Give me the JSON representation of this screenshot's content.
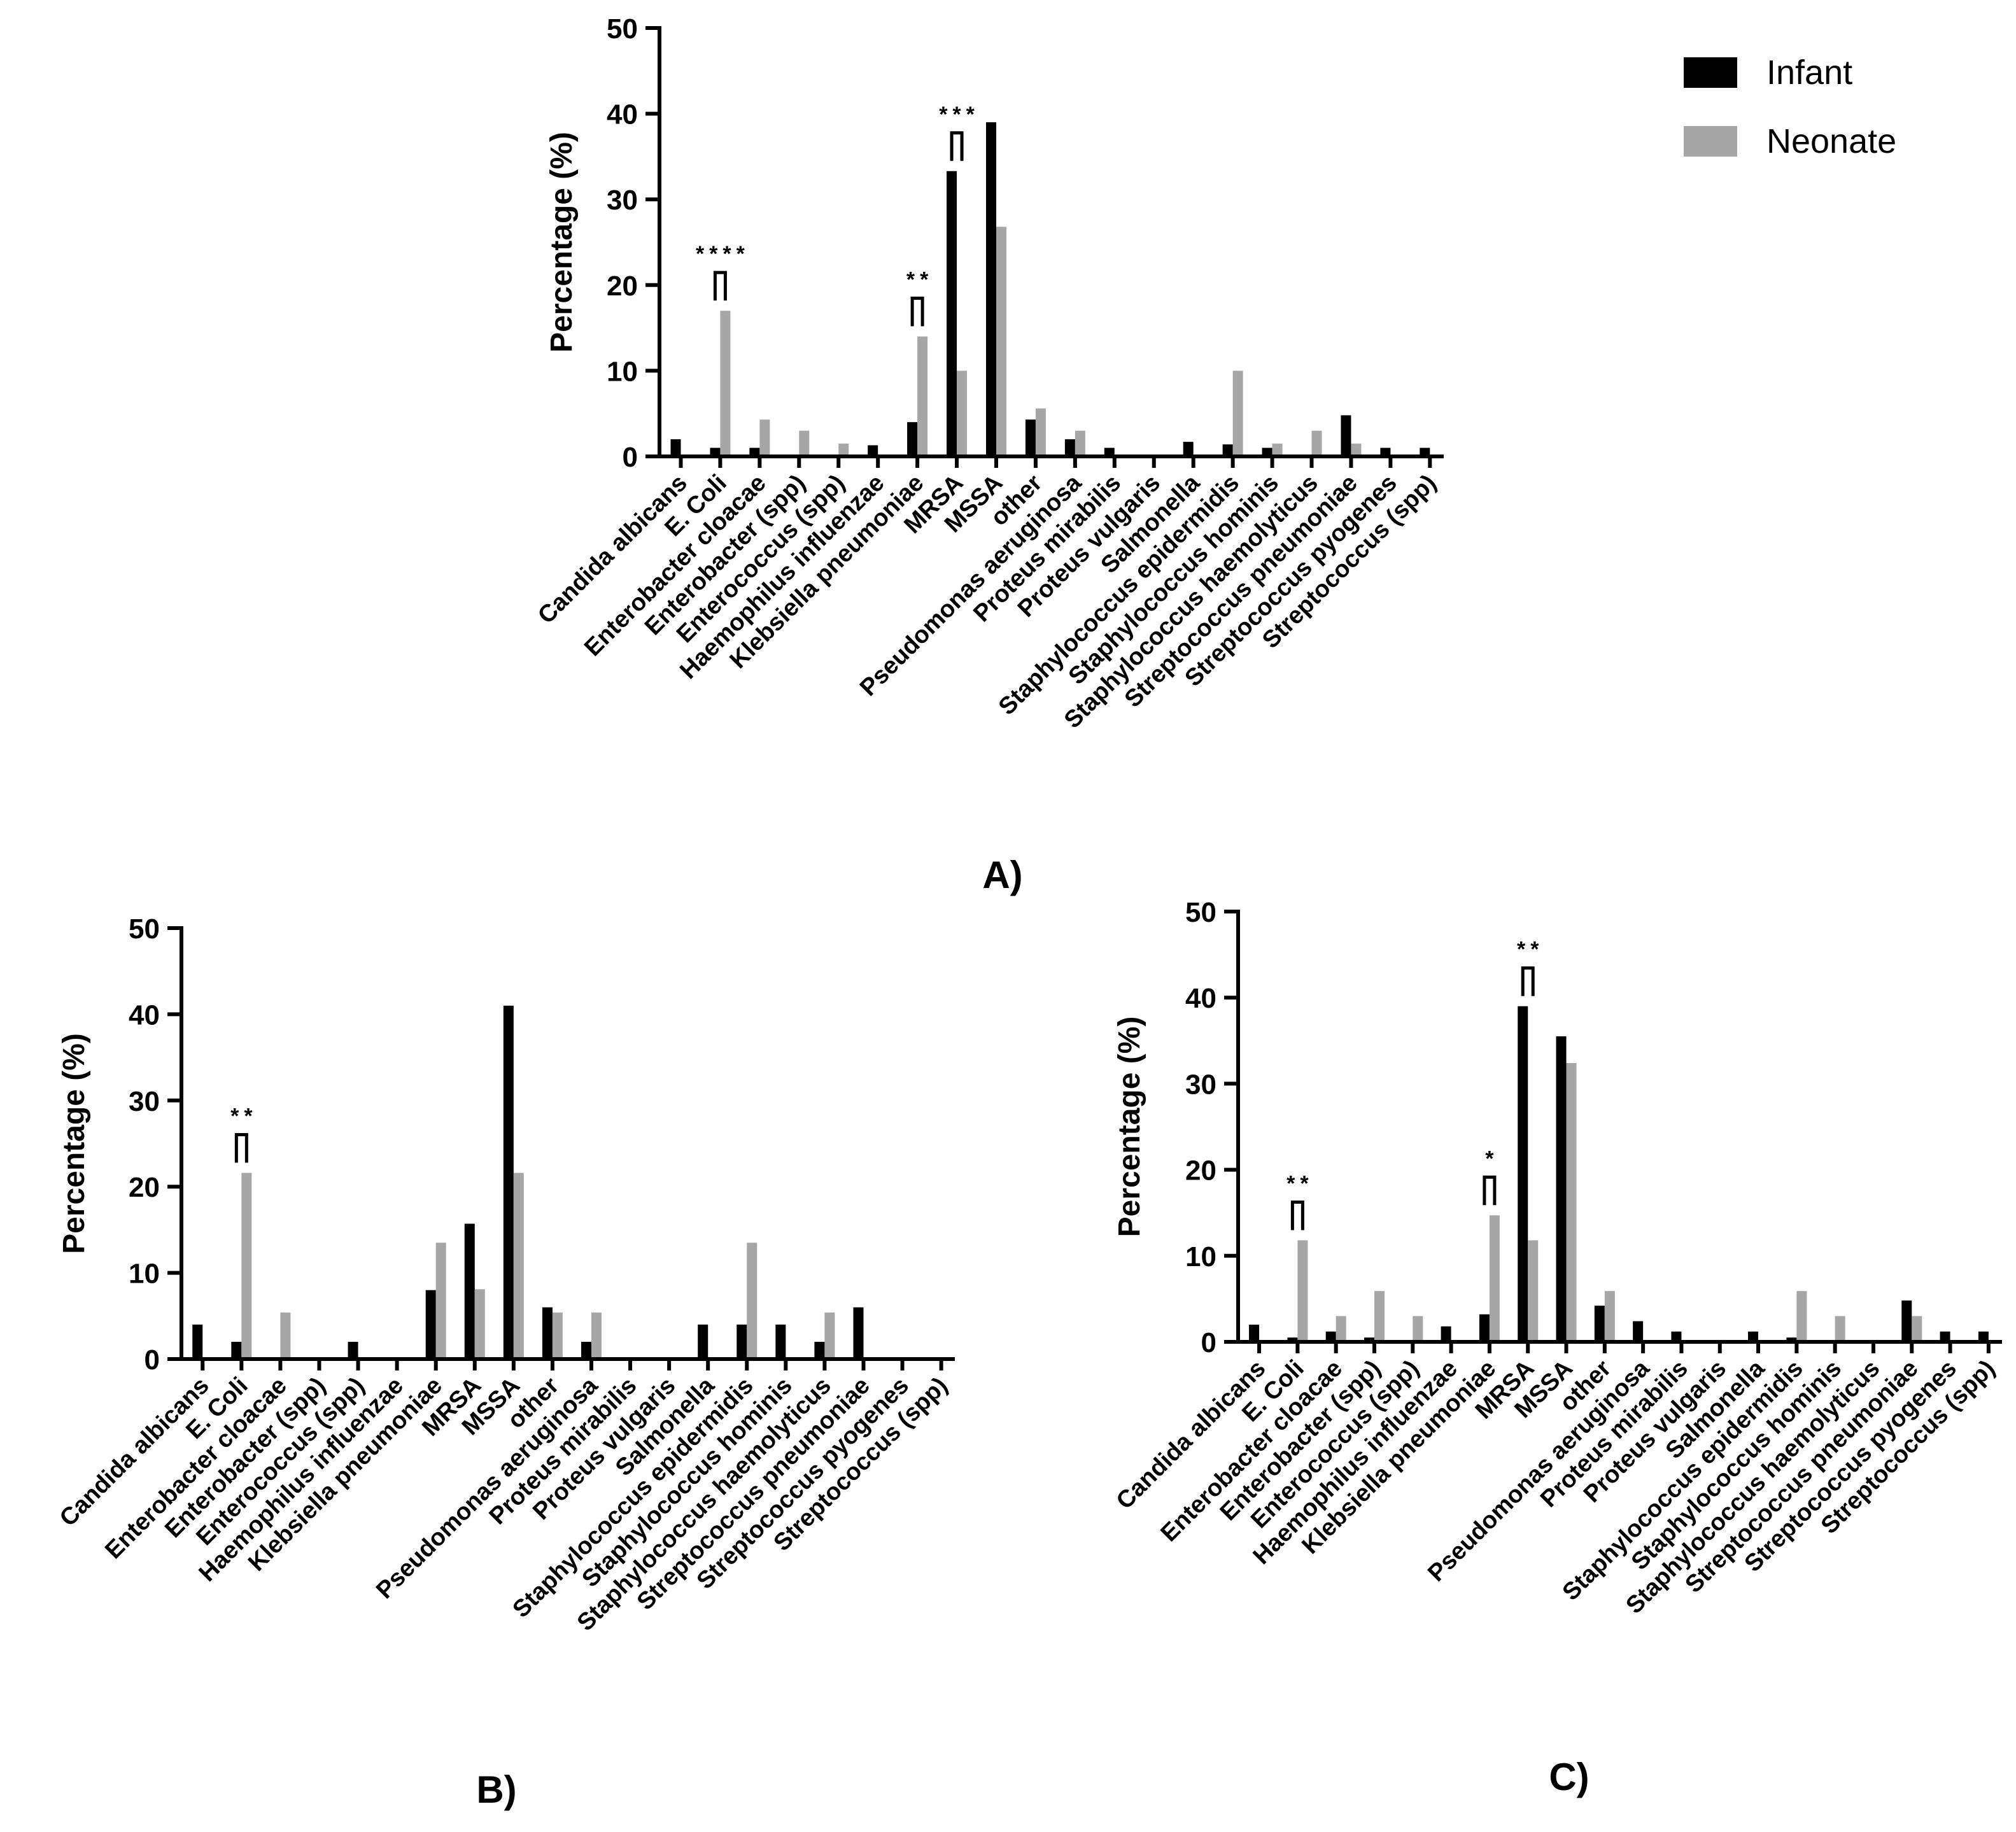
{
  "legend": {
    "position": "top-right",
    "entries": [
      {
        "label": "Infant",
        "color": "#000000"
      },
      {
        "label": "Neonate",
        "color": "#a6a6a6"
      }
    ]
  },
  "colors": {
    "infant": "#000000",
    "neonate": "#a6a6a6"
  },
  "chart_data": [
    {
      "type": "bar",
      "panel_label": "A)",
      "ylabel": "Percentage (%)",
      "ylim": [
        0,
        50
      ],
      "yticks": [
        0,
        10,
        20,
        30,
        40,
        50
      ],
      "categories": [
        "Candida albicans",
        "E. Coli",
        "Enterobacter cloacae",
        "Enterobacter (spp)",
        "Enterococcus (spp)",
        "Haemophilus influenzae",
        "Klebsiella pneumoniae",
        "MRSA",
        "MSSA",
        "other",
        "Pseudomonas aeruginosa",
        "Proteus mirabilis",
        "Proteus vulgaris",
        "Salmonella",
        "Staphylococcus epidermidis",
        "Staphylococcus hominis",
        "Staphylococcus haemolyticus",
        "Streptococcus pneumoniae",
        "Streptococcus pyogenes",
        "Streptococcus (spp)"
      ],
      "series": [
        {
          "name": "Infant",
          "values": [
            2,
            1,
            1,
            0,
            0,
            1.3,
            4,
            33.3,
            39,
            4.3,
            2,
            1,
            0,
            1.7,
            1.4,
            1,
            0,
            4.8,
            1,
            1
          ]
        },
        {
          "name": "Neonate",
          "values": [
            0,
            17,
            4.3,
            3,
            1.5,
            0,
            14,
            10,
            26.8,
            5.6,
            3,
            0,
            0,
            0,
            10,
            1.5,
            3,
            1.5,
            0,
            0
          ]
        }
      ],
      "significance": [
        {
          "category": "E. Coli",
          "label": "****"
        },
        {
          "category": "Klebsiella pneumoniae",
          "label": "**"
        },
        {
          "category": "MRSA",
          "label": "***"
        }
      ]
    },
    {
      "type": "bar",
      "panel_label": "B)",
      "ylabel": "Percentage (%)",
      "ylim": [
        0,
        50
      ],
      "yticks": [
        0,
        10,
        20,
        30,
        40,
        50
      ],
      "categories": [
        "Candida albicans",
        "E. Coli",
        "Enterobacter cloacae",
        "Enterobacter (spp)",
        "Enterococcus (spp)",
        "Haemophilus influenzae",
        "Klebsiella pneumoniae",
        "MRSA",
        "MSSA",
        "other",
        "Pseudomonas aeruginosa",
        "Proteus mirabilis",
        "Proteus vulgaris",
        "Salmonella",
        "Staphylococcus epidermidis",
        "Staphylococcus hominis",
        "Staphylococcus haemolyticus",
        "Streptococcus pneumoniae",
        "Streptococcus pyogenes",
        "Streptococcus (spp)"
      ],
      "series": [
        {
          "name": "Infant",
          "values": [
            4,
            2,
            0,
            0,
            2,
            0,
            8,
            15.7,
            41,
            6,
            2,
            0,
            0,
            4,
            4,
            4,
            2,
            6,
            0,
            0
          ]
        },
        {
          "name": "Neonate",
          "values": [
            0,
            21.6,
            5.4,
            0,
            0,
            0,
            13.5,
            8.1,
            21.6,
            5.4,
            5.4,
            0,
            0,
            0,
            13.5,
            0,
            5.4,
            0,
            0,
            0
          ]
        }
      ],
      "significance": [
        {
          "category": "E. Coli",
          "label": "**"
        }
      ]
    },
    {
      "type": "bar",
      "panel_label": "C)",
      "ylabel": "Percentage (%)",
      "ylim": [
        0,
        50
      ],
      "yticks": [
        0,
        10,
        20,
        30,
        40,
        50
      ],
      "categories": [
        "Candida albicans",
        "E. Coli",
        "Enterobacter cloacae",
        "Enterobacter (spp)",
        "Enterococcus (spp)",
        "Haemophilus influenzae",
        "Klebsiella pneumoniae",
        "MRSA",
        "MSSA",
        "other",
        "Pseudomonas aeruginosa",
        "Proteus mirabilis",
        "Proteus vulgaris",
        "Salmonella",
        "Staphylococcus epidermidis",
        "Staphylococcus hominis",
        "Staphylococcus haemolyticus",
        "Streptococcus pneumoniae",
        "Streptococcus pyogenes",
        "Streptococcus (spp)"
      ],
      "series": [
        {
          "name": "Infant",
          "values": [
            2,
            0.5,
            1.2,
            0.5,
            0,
            1.8,
            3.2,
            39,
            35.5,
            4.2,
            2.4,
            1.2,
            0,
            1.2,
            0.5,
            0,
            0,
            4.8,
            1.2,
            1.2
          ]
        },
        {
          "name": "Neonate",
          "values": [
            0,
            11.8,
            3,
            5.9,
            3,
            0,
            14.7,
            11.8,
            32.4,
            5.9,
            0,
            0,
            0,
            0,
            5.9,
            3,
            0,
            3,
            0,
            0
          ]
        }
      ],
      "significance": [
        {
          "category": "E. Coli",
          "label": "**"
        },
        {
          "category": "Klebsiella pneumoniae",
          "label": "*"
        },
        {
          "category": "MRSA",
          "label": "**"
        }
      ]
    }
  ]
}
